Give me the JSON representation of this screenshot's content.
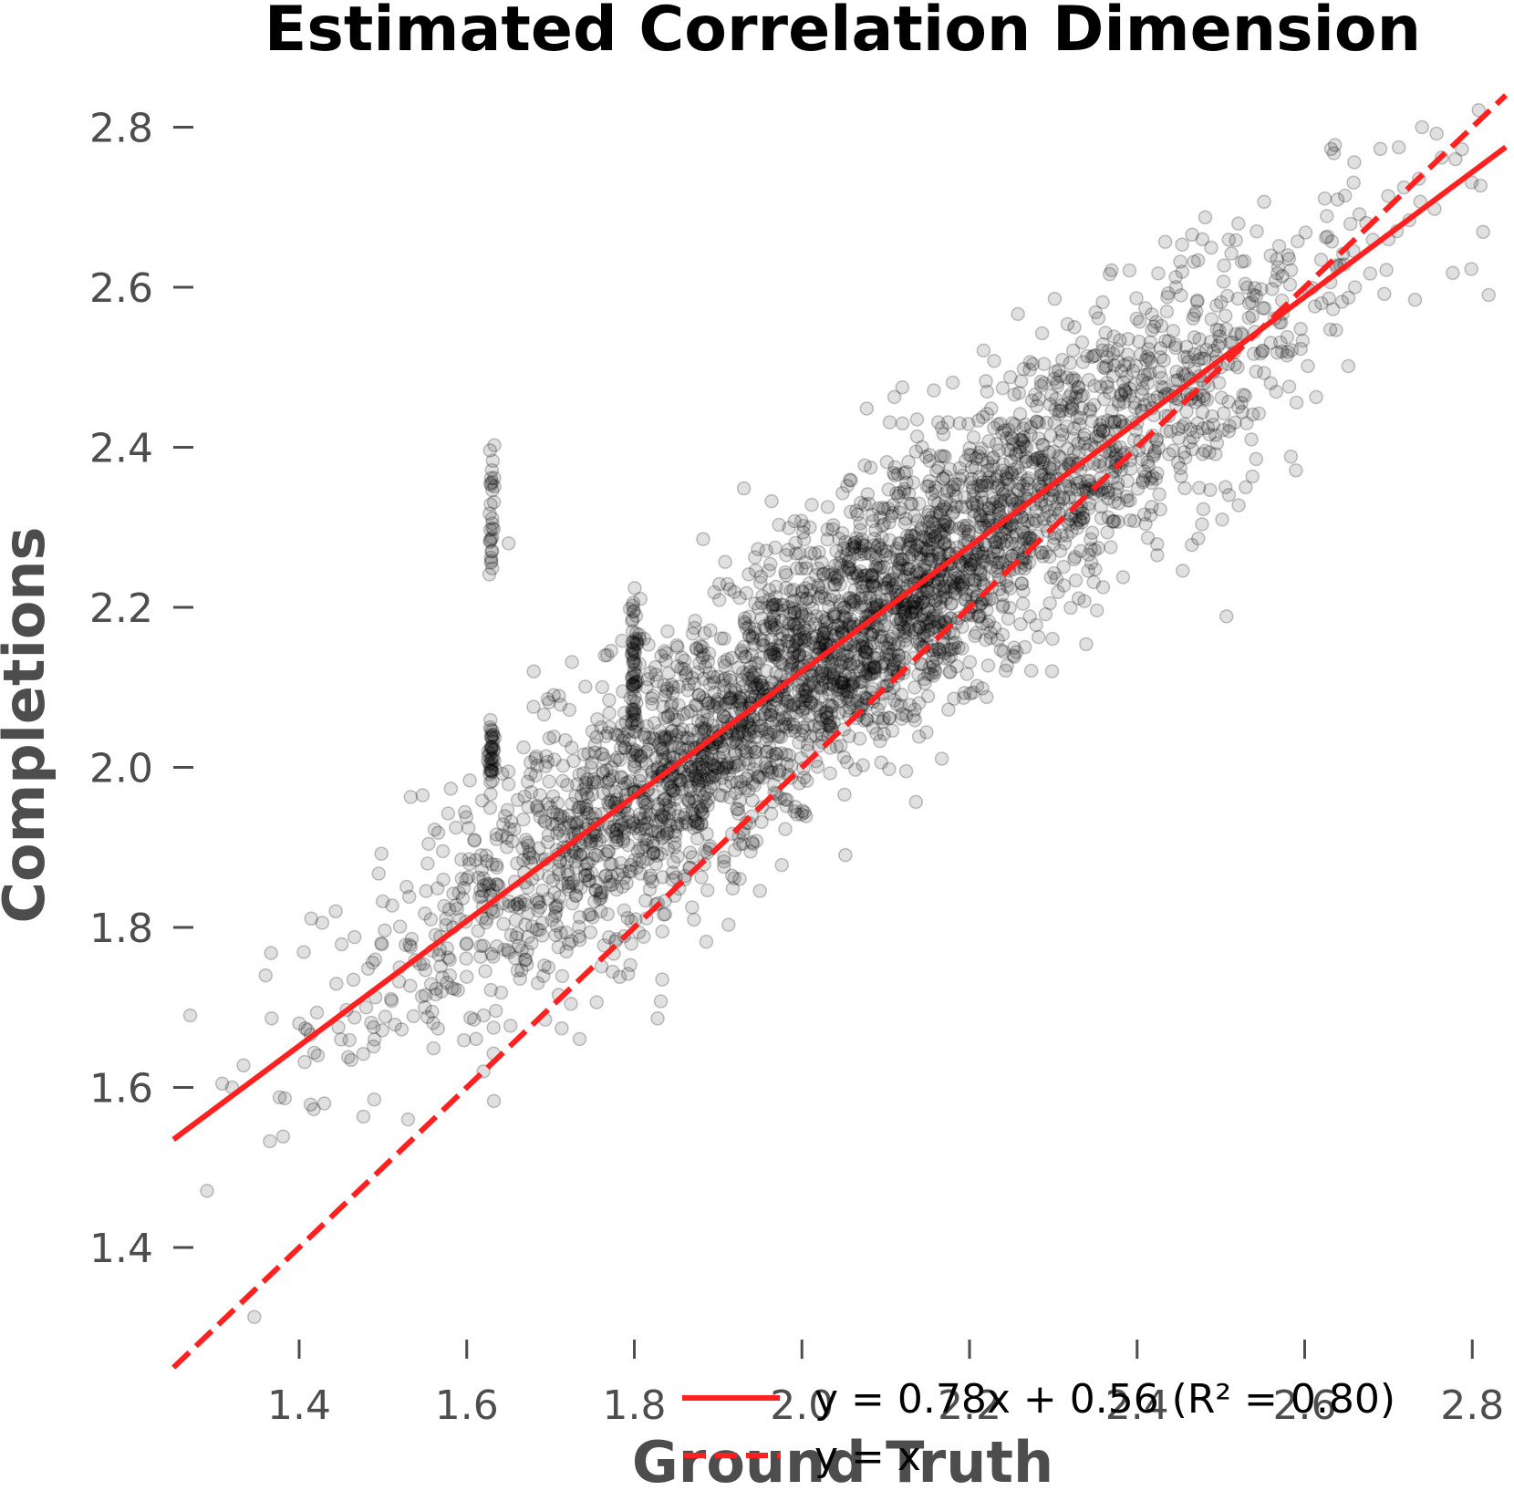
{
  "chart_data": {
    "type": "scatter",
    "title": "Estimated Correlation Dimension",
    "xlabel": "Ground Truth",
    "ylabel": "Completions",
    "xlim": [
      1.25,
      2.84
    ],
    "ylim": [
      1.26,
      2.84
    ],
    "xticks": [
      "1.4",
      "1.6",
      "1.8",
      "2.0",
      "2.2",
      "2.4",
      "2.6",
      "2.8"
    ],
    "yticks": [
      "1.4",
      "1.6",
      "1.8",
      "2.0",
      "2.2",
      "2.4",
      "2.6",
      "2.8"
    ],
    "grid": false,
    "legend_position": "bottom-right",
    "point_color": "#000000",
    "line_color": "#ff2020",
    "fit": {
      "slope": 0.78,
      "intercept": 0.56,
      "r2": 0.8,
      "label": "y = 0.78x + 0.56 (R² = 0.80)",
      "style": "solid"
    },
    "identity": {
      "label": "y = x",
      "style": "dashed"
    },
    "series": [
      {
        "x": [
          1.62,
          1.53,
          1.55,
          1.58,
          1.6,
          1.72,
          1.9,
          2.0,
          2.05,
          2.1,
          2.12,
          2.15,
          2.2,
          2.25,
          2.3,
          2.35,
          2.4,
          2.45,
          2.5,
          2.55,
          2.62,
          2.7,
          2.78,
          1.45,
          1.48,
          1.52,
          1.66,
          1.7,
          1.75,
          1.8,
          1.85,
          1.95,
          2.02,
          2.08,
          2.18,
          2.28,
          2.38,
          2.42,
          1.36,
          1.4,
          1.32,
          1.27,
          1.65,
          1.68,
          1.78,
          1.88,
          1.92,
          1.98,
          2.03,
          2.06,
          2.14,
          2.22,
          2.33,
          2.44,
          2.48,
          2.52,
          2.58,
          2.66,
          2.74,
          2.36,
          2.26,
          2.16,
          1.96,
          1.86,
          1.76,
          1.57,
          1.49,
          1.43
        ],
        "y": [
          1.62,
          1.56,
          1.7,
          1.74,
          1.78,
          1.9,
          2.0,
          2.08,
          2.1,
          2.15,
          2.2,
          2.22,
          2.26,
          2.28,
          2.34,
          2.4,
          2.43,
          2.46,
          2.5,
          2.52,
          2.58,
          2.66,
          2.76,
          1.66,
          1.7,
          1.75,
          1.88,
          1.95,
          1.98,
          1.97,
          2.04,
          2.06,
          2.1,
          2.18,
          2.22,
          2.32,
          2.4,
          2.44,
          1.74,
          1.68,
          1.6,
          1.69,
          2.28,
          2.12,
          2.04,
          1.93,
          2.02,
          1.96,
          2.14,
          2.08,
          2.16,
          2.3,
          2.38,
          2.42,
          2.48,
          2.5,
          2.64,
          2.6,
          2.8,
          2.5,
          2.4,
          2.3,
          2.2,
          1.86,
          1.82,
          1.72,
          1.66,
          1.58
        ]
      }
    ]
  }
}
